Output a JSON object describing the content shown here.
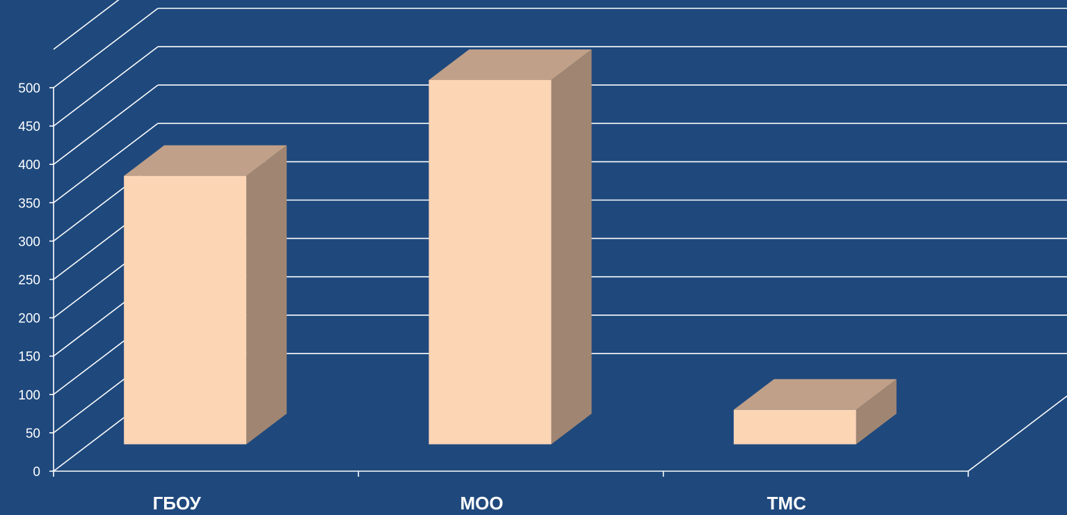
{
  "chart_data": {
    "type": "bar",
    "title": "",
    "xlabel": "",
    "ylabel": "",
    "categories": [
      "ГБОУ",
      "МОО",
      "ТМС"
    ],
    "values": [
      350,
      475,
      45
    ],
    "ylim": [
      0,
      500
    ],
    "yticks": [
      "0",
      "50",
      "100",
      "150",
      "200",
      "250",
      "300",
      "350",
      "400",
      "450",
      "500"
    ],
    "grid": true,
    "legend": "none",
    "style": "3d-column",
    "colors": {
      "background": "#1f497d",
      "bar_front": "#fcd5b5",
      "bar_top": "#c0a088",
      "bar_side": "#a08672",
      "gridline": "#ffffff"
    }
  }
}
